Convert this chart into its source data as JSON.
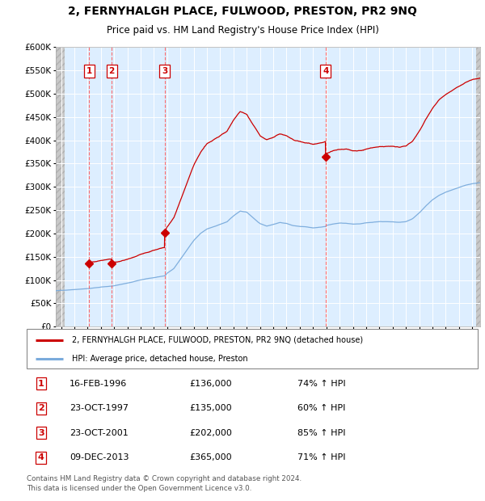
{
  "title": "2, FERNYHALGH PLACE, FULWOOD, PRESTON, PR2 9NQ",
  "subtitle": "Price paid vs. HM Land Registry's House Price Index (HPI)",
  "legend_line1": "2, FERNYHALGH PLACE, FULWOOD, PRESTON, PR2 9NQ (detached house)",
  "legend_line2": "HPI: Average price, detached house, Preston",
  "footer": "Contains HM Land Registry data © Crown copyright and database right 2024.\nThis data is licensed under the Open Government Licence v3.0.",
  "sales": [
    {
      "label": "1",
      "date": "16-FEB-1996",
      "price": 136000,
      "year": 1996.12,
      "hpi_pct": "74% ↑ HPI"
    },
    {
      "label": "2",
      "date": "23-OCT-1997",
      "price": 135000,
      "year": 1997.81,
      "hpi_pct": "60% ↑ HPI"
    },
    {
      "label": "3",
      "date": "23-OCT-2001",
      "price": 202000,
      "year": 2001.81,
      "hpi_pct": "85% ↑ HPI"
    },
    {
      "label": "4",
      "date": "09-DEC-2013",
      "price": 365000,
      "year": 2013.94,
      "hpi_pct": "71% ↑ HPI"
    }
  ],
  "table_rows": [
    [
      "1",
      "16-FEB-1996",
      "£136,000",
      "74% ↑ HPI"
    ],
    [
      "2",
      "23-OCT-1997",
      "£135,000",
      "60% ↑ HPI"
    ],
    [
      "3",
      "23-OCT-2001",
      "£202,000",
      "85% ↑ HPI"
    ],
    [
      "4",
      "09-DEC-2013",
      "£365,000",
      "71% ↑ HPI"
    ]
  ],
  "property_color": "#cc0000",
  "hpi_color": "#7aabdc",
  "bg_plot": "#ddeeff",
  "dash_color": "#ff5555",
  "ylim": [
    0,
    600000
  ],
  "yticks": [
    0,
    50000,
    100000,
    150000,
    200000,
    250000,
    300000,
    350000,
    400000,
    450000,
    500000,
    550000,
    600000
  ],
  "xlim": [
    1993.6,
    2025.6
  ],
  "xtick_start": 1994,
  "xtick_end": 2025,
  "marker_style": "D"
}
